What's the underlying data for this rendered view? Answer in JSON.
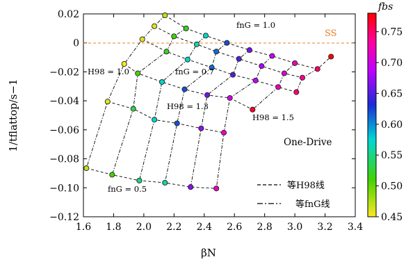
{
  "chart_data": {
    "type": "scatter",
    "xlabel": "βN",
    "ylabel": "1/tflattop/s−1",
    "xlim": [
      1.6,
      3.4
    ],
    "ylim": [
      -0.12,
      0.02
    ],
    "xticks": [
      "1.6",
      "1.8",
      "2.0",
      "2.2",
      "2.4",
      "2.6",
      "2.8",
      "3.0",
      "3.2",
      "3.4"
    ],
    "yticks": [
      "0.02",
      "0",
      "−0.02",
      "−0.04",
      "−0.06",
      "−0.08",
      "−0.10",
      "−0.12"
    ],
    "grid": false,
    "reference_line": {
      "y": 0,
      "label": "SS",
      "color": "#e8822a"
    },
    "colorbar": {
      "label": "fbs",
      "range": [
        0.45,
        0.78
      ],
      "ticks": [
        "0.45",
        "0.50",
        "0.55",
        "0.60",
        "0.65",
        "0.70",
        "0.75"
      ],
      "colormap": [
        "#fde724",
        "#43d400",
        "#00d6d6",
        "#1a2cd6",
        "#c000ff",
        "#ff00a0",
        "#ff0000"
      ]
    },
    "annotations": {
      "h98_10": "H98 = 1.0",
      "h98_13": "H98 = 1.3",
      "h98_15": "H98 = 1.5",
      "fng_10": "fnG = 1.0",
      "fng_07": "fnG = 0.7",
      "fng_05": "fnG = 0.5",
      "scenario": "One-Drive"
    },
    "legend": {
      "position": "bottom-right",
      "entries": [
        {
          "style": "dashed",
          "label": "等H98线"
        },
        {
          "style": "dashdot",
          "label": "等fnG线"
        }
      ]
    },
    "rows": [
      [
        [
          2.14,
          0.019
        ],
        [
          2.28,
          0.01
        ],
        [
          2.41,
          0.005
        ],
        [
          2.55,
          0.0
        ],
        [
          2.7,
          -0.005
        ],
        [
          2.85,
          -0.009
        ],
        [
          3.0,
          -0.014
        ],
        [
          3.15,
          -0.018
        ],
        [
          3.24,
          -0.0095
        ]
      ],
      [
        [
          2.07,
          0.0115
        ],
        [
          2.2,
          0.0045
        ],
        [
          2.35,
          -0.001
        ],
        [
          2.48,
          -0.006
        ],
        [
          2.63,
          -0.011
        ],
        [
          2.78,
          -0.016
        ],
        [
          2.93,
          -0.021
        ],
        [
          3.05,
          -0.024
        ]
      ],
      [
        [
          1.99,
          0.0025
        ],
        [
          2.15,
          -0.006
        ],
        [
          2.29,
          -0.0115
        ],
        [
          2.45,
          -0.017
        ],
        [
          2.59,
          -0.022
        ],
        [
          2.74,
          -0.026
        ],
        [
          2.89,
          -0.0305
        ],
        [
          3.01,
          -0.034
        ]
      ],
      [
        [
          1.87,
          -0.0145
        ],
        [
          1.96,
          -0.021
        ],
        [
          2.12,
          -0.027
        ],
        [
          2.27,
          -0.032
        ],
        [
          2.42,
          -0.036
        ],
        [
          2.57,
          -0.038
        ],
        [
          2.72,
          -0.046
        ]
      ],
      [
        [
          1.76,
          -0.0405
        ],
        [
          1.93,
          -0.0455
        ],
        [
          2.07,
          -0.053
        ],
        [
          2.22,
          -0.0555
        ],
        [
          2.38,
          -0.059
        ],
        [
          2.53,
          -0.062
        ]
      ],
      [
        [
          1.62,
          -0.0865
        ],
        [
          1.79,
          -0.091
        ],
        [
          1.97,
          -0.095
        ],
        [
          2.14,
          -0.0965
        ],
        [
          2.31,
          -0.0995
        ],
        [
          2.48,
          -0.1005
        ]
      ]
    ],
    "fbs": [
      [
        0.47,
        0.52,
        0.57,
        0.62,
        0.66,
        0.69,
        0.72,
        0.75,
        0.78
      ],
      [
        0.46,
        0.51,
        0.56,
        0.61,
        0.65,
        0.68,
        0.71,
        0.74
      ],
      [
        0.46,
        0.52,
        0.57,
        0.61,
        0.65,
        0.69,
        0.72,
        0.75
      ],
      [
        0.45,
        0.51,
        0.57,
        0.62,
        0.66,
        0.7,
        0.77
      ],
      [
        0.46,
        0.53,
        0.57,
        0.62,
        0.67,
        0.72
      ],
      [
        0.47,
        0.51,
        0.55,
        0.56,
        0.67,
        0.72
      ]
    ]
  }
}
